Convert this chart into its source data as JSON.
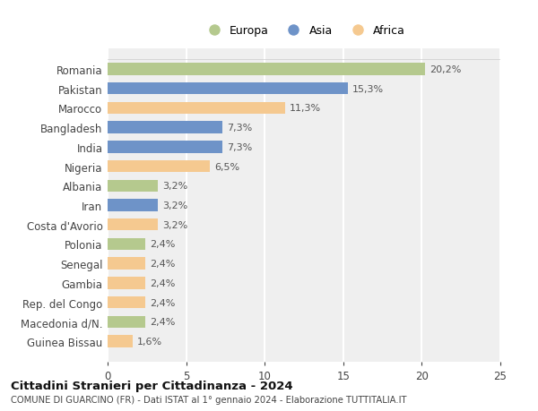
{
  "countries": [
    "Guinea Bissau",
    "Macedonia d/N.",
    "Rep. del Congo",
    "Gambia",
    "Senegal",
    "Polonia",
    "Costa d'Avorio",
    "Iran",
    "Albania",
    "Nigeria",
    "India",
    "Bangladesh",
    "Marocco",
    "Pakistan",
    "Romania"
  ],
  "values": [
    1.6,
    2.4,
    2.4,
    2.4,
    2.4,
    2.4,
    3.2,
    3.2,
    3.2,
    6.5,
    7.3,
    7.3,
    11.3,
    15.3,
    20.2
  ],
  "labels": [
    "1,6%",
    "2,4%",
    "2,4%",
    "2,4%",
    "2,4%",
    "2,4%",
    "3,2%",
    "3,2%",
    "3,2%",
    "6,5%",
    "7,3%",
    "7,3%",
    "11,3%",
    "15,3%",
    "20,2%"
  ],
  "colors": [
    "#f5c990",
    "#b5c98e",
    "#f5c990",
    "#f5c990",
    "#f5c990",
    "#b5c98e",
    "#f5c990",
    "#6e93c8",
    "#b5c98e",
    "#f5c990",
    "#6e93c8",
    "#6e93c8",
    "#f5c990",
    "#6e93c8",
    "#b5c98e"
  ],
  "legend_labels": [
    "Europa",
    "Asia",
    "Africa"
  ],
  "legend_colors": [
    "#b5c98e",
    "#6e93c8",
    "#f5c990"
  ],
  "title": "Cittadini Stranieri per Cittadinanza - 2024",
  "subtitle": "COMUNE DI GUARCINO (FR) - Dati ISTAT al 1° gennaio 2024 - Elaborazione TUTTITALIA.IT",
  "xlim": [
    0,
    25
  ],
  "xticks": [
    0,
    5,
    10,
    15,
    20,
    25
  ],
  "bg_color": "#ffffff",
  "bar_bg_color": "#efefef",
  "grid_color": "#ffffff"
}
